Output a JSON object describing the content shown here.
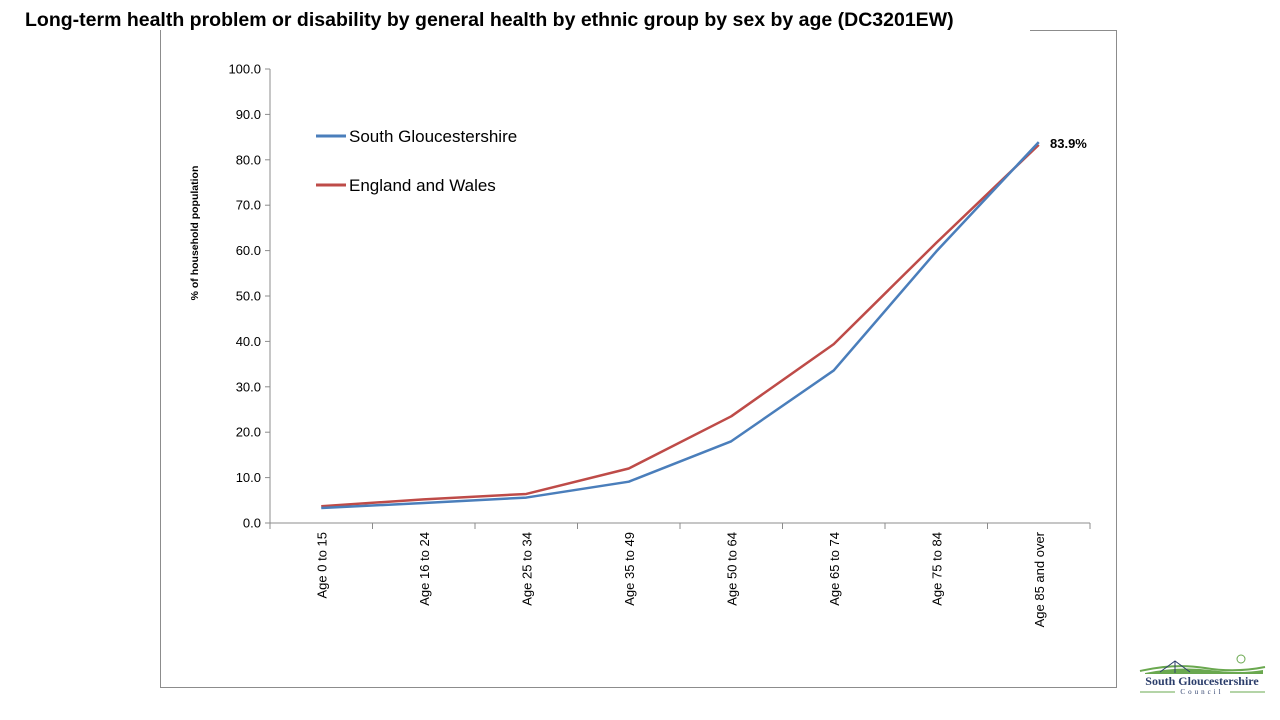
{
  "title": "Long-term health problem or disability by general health by ethnic group by sex by age (DC3201EW)",
  "chart_data": {
    "type": "line",
    "title": "",
    "ylabel": "% of household population",
    "xlabel": "",
    "ylim": [
      0,
      100
    ],
    "yticks": [
      "0.0",
      "10.0",
      "20.0",
      "30.0",
      "40.0",
      "50.0",
      "60.0",
      "70.0",
      "80.0",
      "90.0",
      "100.0"
    ],
    "categories": [
      "Age 0 to 15",
      "Age 16 to 24",
      "Age 25 to 34",
      "Age 35 to 49",
      "Age 50 to 64",
      "Age 65 to 74",
      "Age 75 to 84",
      "Age 85 and over"
    ],
    "series": [
      {
        "name": "South Gloucestershire",
        "color": "#4a7ebb",
        "values": [
          3.3,
          4.4,
          5.6,
          9.1,
          18.0,
          33.6,
          59.8,
          83.9
        ]
      },
      {
        "name": "England and Wales",
        "color": "#be4b48",
        "values": [
          3.7,
          5.2,
          6.4,
          12.0,
          23.5,
          39.4,
          61.7,
          83.3
        ]
      }
    ],
    "annotation": "83.9%",
    "legend_position": "top-left",
    "grid": false
  },
  "logo": {
    "name": "South Gloucestershire",
    "sub": "Council"
  }
}
